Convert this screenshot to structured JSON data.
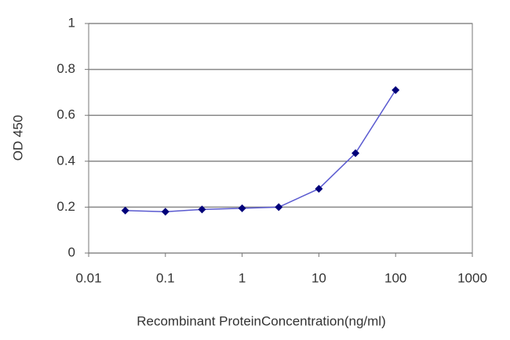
{
  "chart_data": {
    "type": "line",
    "xlabel": "Recombinant ProteinConcentration(ng/ml)",
    "ylabel": "OD 450",
    "x": [
      0.03,
      0.1,
      0.3,
      1,
      3,
      10,
      30,
      100
    ],
    "series": [
      {
        "color": "#00007a",
        "line_color": "#5a5ad0",
        "values": [
          0.185,
          0.18,
          0.19,
          0.195,
          0.2,
          0.28,
          0.435,
          0.71
        ]
      }
    ],
    "xlim": [
      0.01,
      1000
    ],
    "xticks": [
      0.01,
      0.1,
      1,
      10,
      100,
      1000
    ],
    "x_log": true,
    "ylim": [
      0,
      1
    ],
    "yticks": [
      0,
      0.2,
      0.4,
      0.6,
      0.8,
      1
    ],
    "grid": true
  }
}
